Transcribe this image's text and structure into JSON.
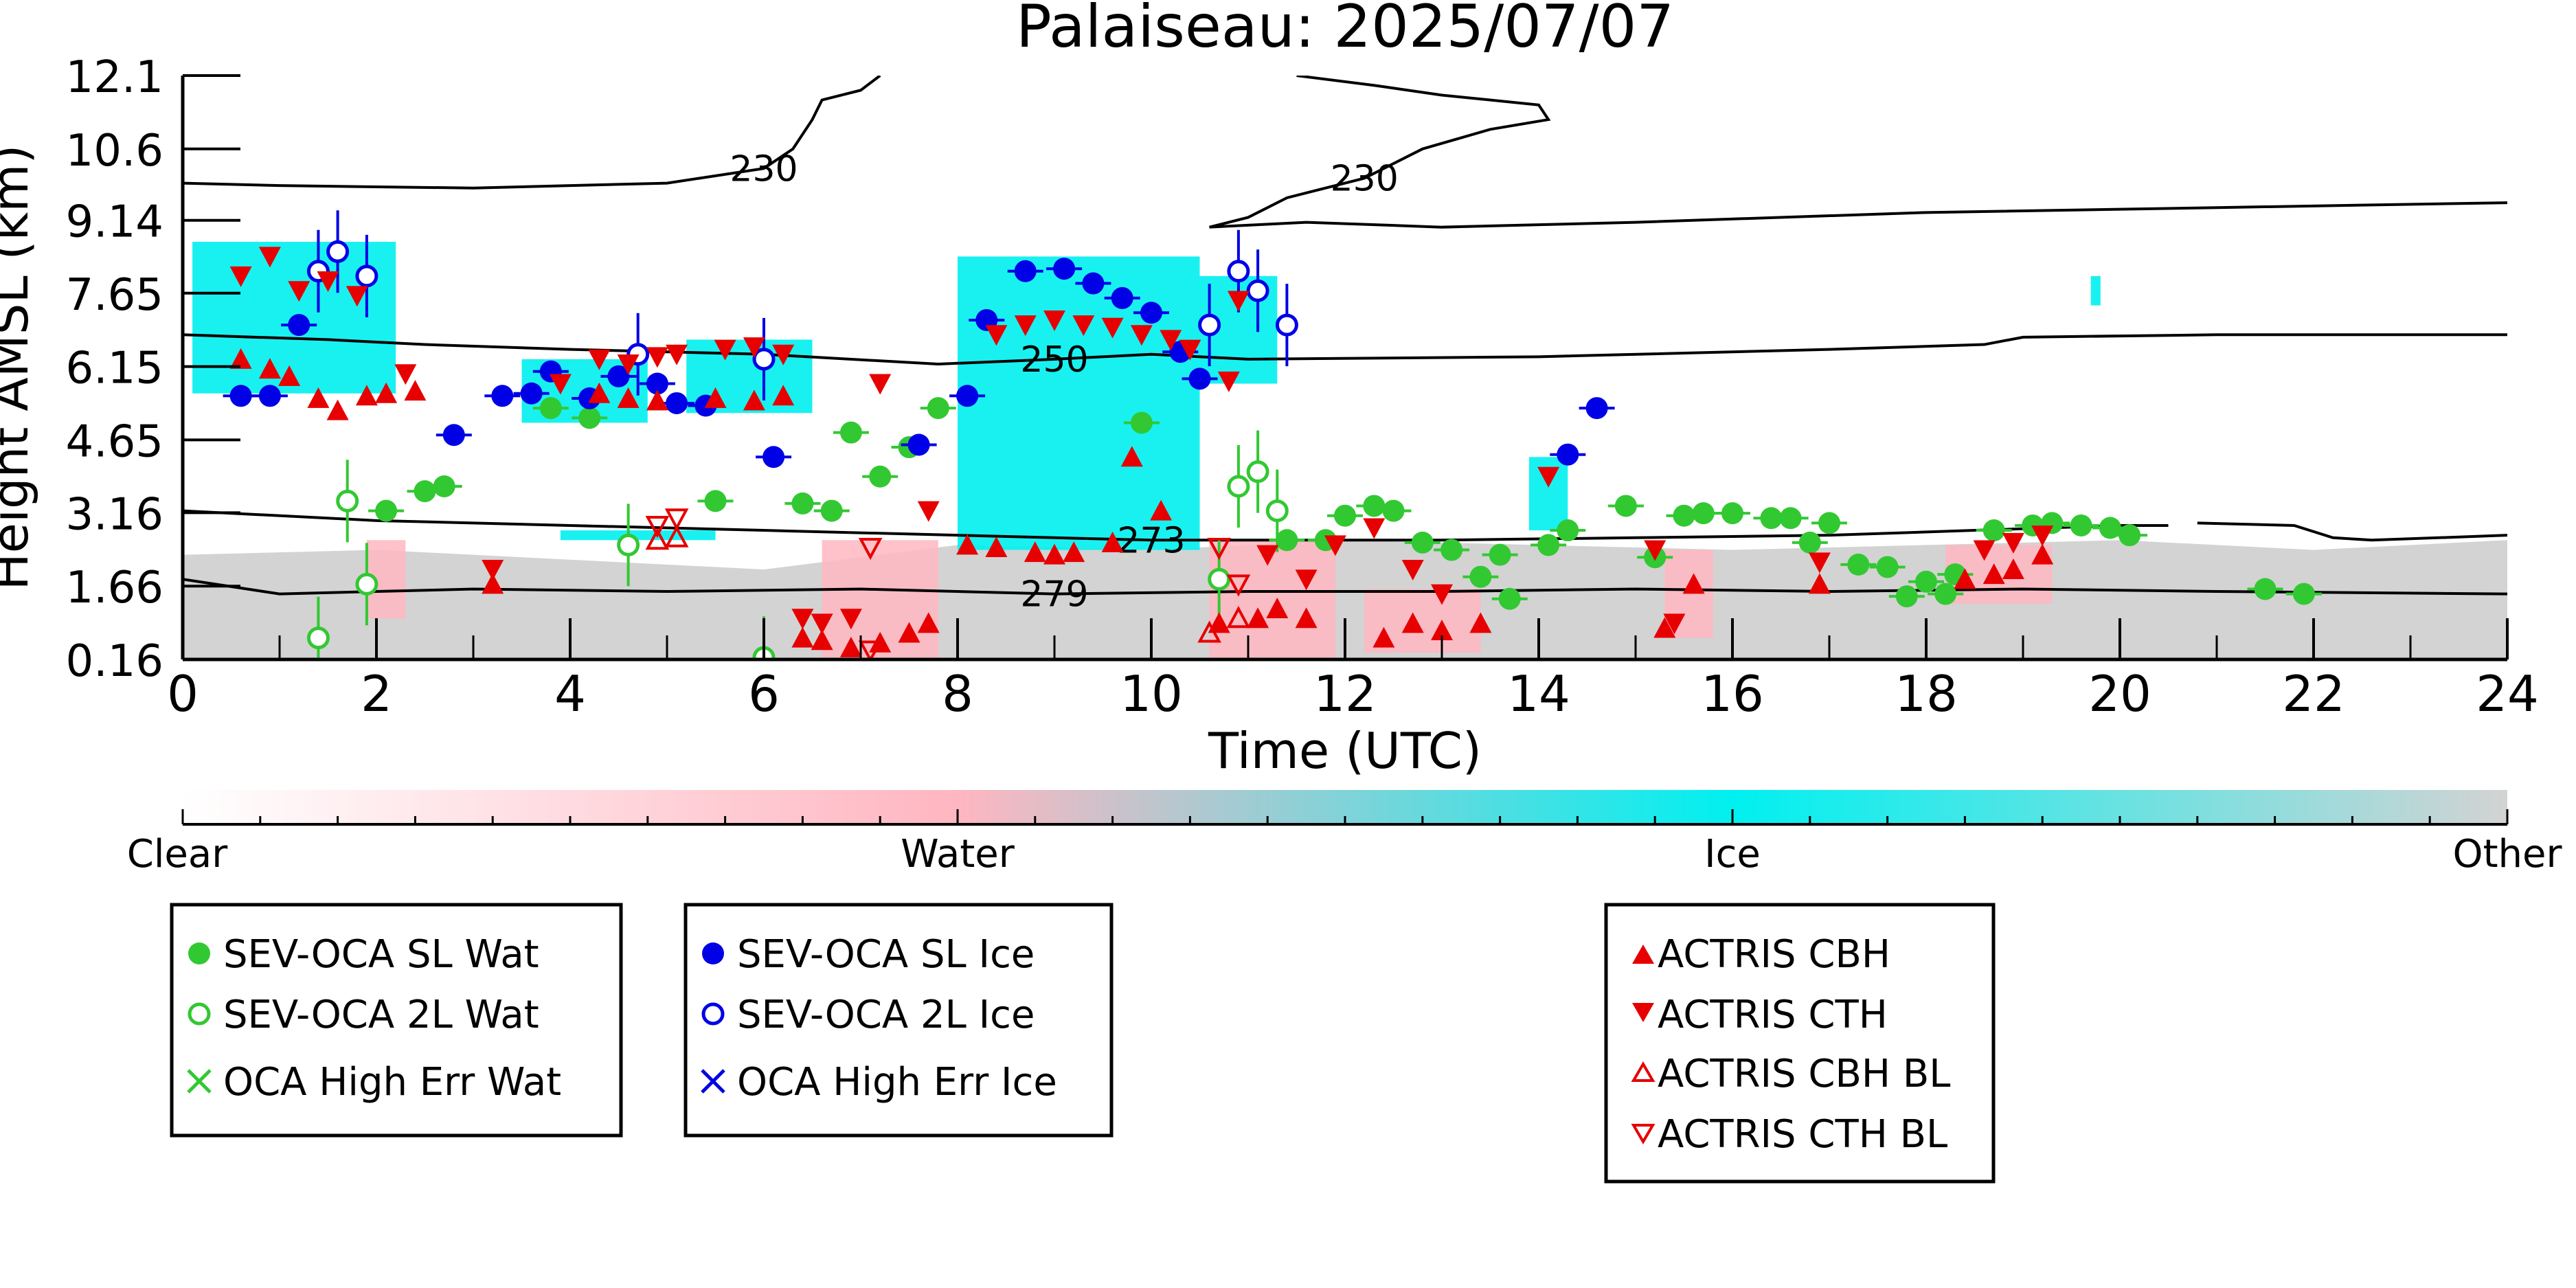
{
  "chart_data": {
    "type": "scatter",
    "title": "Palaiseau: 2025/07/07",
    "xlabel": "Time (UTC)",
    "ylabel": "Height AMSL (km)",
    "xlim": [
      0,
      24
    ],
    "ylim": [
      0.16,
      12.1
    ],
    "xticks": [
      "0",
      "2",
      "4",
      "6",
      "8",
      "10",
      "12",
      "14",
      "16",
      "18",
      "20",
      "22",
      "24"
    ],
    "yticks": [
      "0.16",
      "1.66",
      "3.16",
      "4.65",
      "6.15",
      "7.65",
      "9.14",
      "10.6",
      "12.1"
    ],
    "colorbar": {
      "labels": [
        "Clear",
        "Water",
        "Ice",
        "Other"
      ],
      "colors": [
        "#ffffff",
        "#ffb6c1",
        "#00f0f0",
        "#d3d3d3"
      ]
    },
    "contours": [
      {
        "label": "230",
        "points": [
          [
            0,
            9.9
          ],
          [
            1,
            9.85
          ],
          [
            3,
            9.8
          ],
          [
            5,
            9.9
          ],
          [
            6,
            10.2
          ],
          [
            6.3,
            10.6
          ],
          [
            6.5,
            11.2
          ],
          [
            6.6,
            11.6
          ],
          [
            7.0,
            11.8
          ],
          [
            7.2,
            12.1
          ]
        ]
      },
      {
        "label": "230",
        "points": [
          [
            11.5,
            12.1
          ],
          [
            12.3,
            11.9
          ],
          [
            13,
            11.7
          ],
          [
            14,
            11.5
          ],
          [
            14.1,
            11.2
          ],
          [
            13.5,
            11.0
          ],
          [
            12.8,
            10.6
          ],
          [
            12.2,
            10.0
          ],
          [
            11.4,
            9.6
          ],
          [
            11.0,
            9.2
          ],
          [
            10.6,
            9.0
          ],
          [
            11.6,
            9.1
          ],
          [
            13,
            9.0
          ],
          [
            15,
            9.1
          ],
          [
            18,
            9.3
          ],
          [
            21,
            9.4
          ],
          [
            24,
            9.5
          ]
        ]
      },
      {
        "label": "250",
        "points": [
          [
            0,
            6.8
          ],
          [
            1.5,
            6.7
          ],
          [
            2.5,
            6.6
          ],
          [
            4,
            6.5
          ],
          [
            6,
            6.4
          ],
          [
            7.8,
            6.2
          ],
          [
            9,
            6.3
          ],
          [
            10,
            6.4
          ],
          [
            11,
            6.3
          ],
          [
            14,
            6.35
          ],
          [
            17,
            6.5
          ],
          [
            18.6,
            6.6
          ],
          [
            19,
            6.75
          ],
          [
            21,
            6.8
          ],
          [
            24,
            6.8
          ]
        ]
      },
      {
        "label": "273",
        "points": [
          [
            0,
            3.2
          ],
          [
            2,
            3.0
          ],
          [
            4,
            2.9
          ],
          [
            6,
            2.8
          ],
          [
            8,
            2.7
          ],
          [
            10,
            2.6
          ],
          [
            11.5,
            2.6
          ],
          [
            13,
            2.6
          ],
          [
            15,
            2.65
          ],
          [
            17,
            2.7
          ],
          [
            18.5,
            2.8
          ],
          [
            20,
            2.9
          ],
          [
            20.5,
            2.9
          ]
        ]
      },
      {
        "label": "",
        "points": [
          [
            20.8,
            2.95
          ],
          [
            21.8,
            2.9
          ],
          [
            22.2,
            2.65
          ],
          [
            22.6,
            2.6
          ],
          [
            24,
            2.7
          ]
        ]
      },
      {
        "label": "279",
        "points": [
          [
            0,
            1.8
          ],
          [
            1,
            1.5
          ],
          [
            3,
            1.6
          ],
          [
            5,
            1.55
          ],
          [
            7,
            1.6
          ],
          [
            9,
            1.5
          ],
          [
            11,
            1.55
          ],
          [
            13,
            1.55
          ],
          [
            15,
            1.6
          ],
          [
            17,
            1.55
          ],
          [
            19,
            1.6
          ],
          [
            21,
            1.55
          ],
          [
            24,
            1.5
          ]
        ]
      }
    ],
    "series": [
      {
        "name": "SEV-OCA SL Wat",
        "marker": "filled-circle",
        "color": "#32c832",
        "points": [
          [
            4.2,
            5.1
          ],
          [
            3.8,
            5.3
          ],
          [
            2.1,
            3.2
          ],
          [
            2.5,
            3.6
          ],
          [
            2.7,
            3.7
          ],
          [
            5.5,
            3.4
          ],
          [
            6.4,
            3.35
          ],
          [
            6.7,
            3.2
          ],
          [
            6.9,
            4.8
          ],
          [
            7.2,
            3.9
          ],
          [
            7.5,
            4.5
          ],
          [
            7.8,
            5.3
          ],
          [
            9.9,
            5.0
          ],
          [
            11.4,
            2.6
          ],
          [
            11.8,
            2.6
          ],
          [
            12.0,
            3.1
          ],
          [
            12.3,
            3.3
          ],
          [
            12.5,
            3.2
          ],
          [
            12.8,
            2.55
          ],
          [
            13.1,
            2.4
          ],
          [
            13.4,
            1.85
          ],
          [
            13.6,
            2.3
          ],
          [
            13.7,
            1.4
          ],
          [
            14.1,
            2.5
          ],
          [
            14.3,
            2.8
          ],
          [
            14.9,
            3.3
          ],
          [
            15.2,
            2.25
          ],
          [
            15.5,
            3.1
          ],
          [
            15.7,
            3.15
          ],
          [
            16.0,
            3.15
          ],
          [
            16.4,
            3.05
          ],
          [
            16.6,
            3.05
          ],
          [
            16.8,
            2.55
          ],
          [
            17.0,
            2.95
          ],
          [
            17.3,
            2.1
          ],
          [
            17.6,
            2.05
          ],
          [
            18.0,
            1.75
          ],
          [
            18.3,
            1.9
          ],
          [
            18.7,
            2.8
          ],
          [
            19.1,
            2.9
          ],
          [
            19.3,
            2.95
          ],
          [
            19.6,
            2.9
          ],
          [
            19.9,
            2.85
          ],
          [
            20.1,
            2.7
          ],
          [
            21.5,
            1.6
          ],
          [
            21.9,
            1.5
          ],
          [
            18.2,
            1.5
          ],
          [
            17.8,
            1.45
          ]
        ]
      },
      {
        "name": "SEV-OCA 2L Wat",
        "marker": "open-circle",
        "color": "#32c832",
        "points": [
          [
            1.4,
            0.6
          ],
          [
            1.7,
            3.4
          ],
          [
            1.9,
            1.7
          ],
          [
            4.6,
            2.5
          ],
          [
            6.0,
            0.2
          ],
          [
            10.7,
            1.8
          ],
          [
            10.9,
            3.7
          ],
          [
            11.1,
            4.0
          ],
          [
            11.3,
            3.2
          ]
        ]
      },
      {
        "name": "SEV-OCA SL Ice",
        "marker": "filled-circle",
        "color": "#0000e6",
        "points": [
          [
            0.6,
            5.55
          ],
          [
            0.9,
            5.55
          ],
          [
            1.2,
            7.0
          ],
          [
            2.8,
            4.75
          ],
          [
            3.3,
            5.55
          ],
          [
            3.6,
            5.6
          ],
          [
            3.8,
            6.05
          ],
          [
            4.2,
            5.5
          ],
          [
            4.5,
            5.95
          ],
          [
            4.9,
            5.8
          ],
          [
            5.1,
            5.4
          ],
          [
            5.4,
            5.35
          ],
          [
            6.1,
            4.3
          ],
          [
            7.6,
            4.55
          ],
          [
            8.1,
            5.55
          ],
          [
            8.3,
            7.1
          ],
          [
            8.7,
            8.1
          ],
          [
            9.1,
            8.15
          ],
          [
            9.4,
            7.85
          ],
          [
            9.7,
            7.55
          ],
          [
            10.0,
            7.25
          ],
          [
            10.3,
            6.45
          ],
          [
            10.5,
            5.9
          ],
          [
            14.3,
            4.35
          ],
          [
            14.6,
            5.3
          ]
        ]
      },
      {
        "name": "SEV-OCA 2L Ice",
        "marker": "open-circle",
        "color": "#0000e6",
        "points": [
          [
            1.4,
            8.1
          ],
          [
            1.6,
            8.5
          ],
          [
            1.9,
            8.0
          ],
          [
            4.7,
            6.4
          ],
          [
            6.0,
            6.3
          ],
          [
            10.6,
            7.0
          ],
          [
            10.9,
            8.1
          ],
          [
            11.1,
            7.7
          ],
          [
            11.4,
            7.0
          ]
        ]
      },
      {
        "name": "OCA High Err Wat",
        "marker": "x",
        "color": "#32c832",
        "points": []
      },
      {
        "name": "OCA High Err Ice",
        "marker": "x",
        "color": "#0000e6",
        "points": []
      },
      {
        "name": "ACTRIS CBH",
        "marker": "filled-triangle-up",
        "color": "#e60000",
        "points": [
          [
            0.6,
            6.3
          ],
          [
            0.9,
            6.1
          ],
          [
            1.1,
            5.95
          ],
          [
            1.4,
            5.5
          ],
          [
            1.6,
            5.25
          ],
          [
            1.9,
            5.55
          ],
          [
            2.1,
            5.6
          ],
          [
            2.4,
            5.65
          ],
          [
            3.2,
            1.7
          ],
          [
            4.3,
            5.6
          ],
          [
            4.6,
            5.5
          ],
          [
            4.9,
            5.45
          ],
          [
            5.5,
            5.5
          ],
          [
            5.9,
            5.45
          ],
          [
            6.2,
            5.55
          ],
          [
            6.4,
            0.6
          ],
          [
            6.6,
            0.55
          ],
          [
            6.9,
            0.4
          ],
          [
            7.2,
            0.5
          ],
          [
            7.5,
            0.7
          ],
          [
            7.7,
            0.9
          ],
          [
            8.1,
            2.5
          ],
          [
            8.4,
            2.45
          ],
          [
            8.8,
            2.35
          ],
          [
            9.0,
            2.3
          ],
          [
            9.2,
            2.35
          ],
          [
            9.6,
            2.55
          ],
          [
            9.8,
            4.3
          ],
          [
            10.1,
            3.2
          ],
          [
            10.7,
            0.9
          ],
          [
            11.1,
            1.0
          ],
          [
            11.3,
            1.2
          ],
          [
            11.6,
            1.0
          ],
          [
            12.4,
            0.6
          ],
          [
            12.7,
            0.9
          ],
          [
            13.0,
            0.75
          ],
          [
            13.4,
            0.9
          ],
          [
            15.3,
            0.8
          ],
          [
            15.6,
            1.7
          ],
          [
            16.9,
            1.7
          ],
          [
            18.4,
            1.8
          ],
          [
            18.7,
            1.9
          ],
          [
            18.9,
            2.0
          ],
          [
            19.2,
            2.3
          ]
        ]
      },
      {
        "name": "ACTRIS CTH",
        "marker": "filled-triangle-down",
        "color": "#e60000",
        "points": [
          [
            0.6,
            8.0
          ],
          [
            0.9,
            8.4
          ],
          [
            1.2,
            7.7
          ],
          [
            1.5,
            7.9
          ],
          [
            1.8,
            7.6
          ],
          [
            2.3,
            6.0
          ],
          [
            3.2,
            2.0
          ],
          [
            3.9,
            5.8
          ],
          [
            4.3,
            6.3
          ],
          [
            4.6,
            6.2
          ],
          [
            4.9,
            6.35
          ],
          [
            5.1,
            6.4
          ],
          [
            5.6,
            6.5
          ],
          [
            5.9,
            6.55
          ],
          [
            6.2,
            6.4
          ],
          [
            6.4,
            1.0
          ],
          [
            6.6,
            0.9
          ],
          [
            6.9,
            1.0
          ],
          [
            7.2,
            5.8
          ],
          [
            7.7,
            3.2
          ],
          [
            8.4,
            6.8
          ],
          [
            8.7,
            7.0
          ],
          [
            9.0,
            7.1
          ],
          [
            9.3,
            7.0
          ],
          [
            9.6,
            6.95
          ],
          [
            9.9,
            6.8
          ],
          [
            10.2,
            6.7
          ],
          [
            10.4,
            6.5
          ],
          [
            10.8,
            5.85
          ],
          [
            10.9,
            7.5
          ],
          [
            11.2,
            2.3
          ],
          [
            11.6,
            1.8
          ],
          [
            11.9,
            2.5
          ],
          [
            12.3,
            2.85
          ],
          [
            12.7,
            2.0
          ],
          [
            13.0,
            1.5
          ],
          [
            14.1,
            3.9
          ],
          [
            15.2,
            2.4
          ],
          [
            15.4,
            0.9
          ],
          [
            16.9,
            2.15
          ],
          [
            18.6,
            2.4
          ],
          [
            18.9,
            2.55
          ],
          [
            19.2,
            2.7
          ]
        ]
      },
      {
        "name": "ACTRIS CBH BL",
        "marker": "open-triangle-up",
        "color": "#e60000",
        "points": [
          [
            4.9,
            2.6
          ],
          [
            5.1,
            2.65
          ],
          [
            10.6,
            0.7
          ],
          [
            10.9,
            1.0
          ]
        ]
      },
      {
        "name": "ACTRIS CTH BL",
        "marker": "open-triangle-down",
        "color": "#e60000",
        "points": [
          [
            4.9,
            2.9
          ],
          [
            5.1,
            3.05
          ],
          [
            7.1,
            2.45
          ],
          [
            7.1,
            0.35
          ],
          [
            10.7,
            2.45
          ],
          [
            10.9,
            1.7
          ]
        ]
      }
    ]
  }
}
